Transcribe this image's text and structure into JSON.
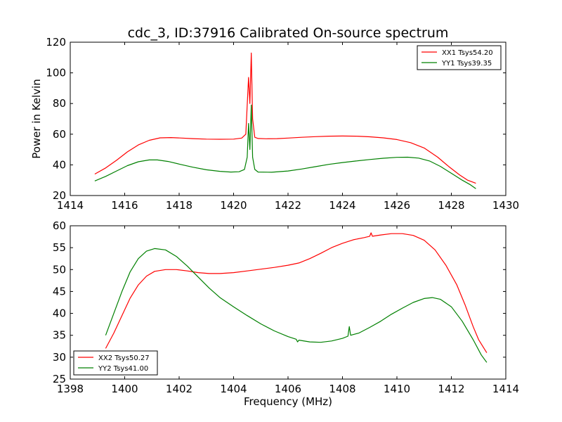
{
  "figure_title": "cdc_3, ID:37916 Calibrated On-source spectrum",
  "ylabel": "Power in Kelvin",
  "xlabel": "Frequency (MHz)",
  "colors": {
    "red": "#ff0000",
    "green": "#008000"
  },
  "chart_data": [
    {
      "type": "line",
      "xlim": [
        1414,
        1430
      ],
      "ylim": [
        20,
        120
      ],
      "xticks": [
        "1414",
        "1416",
        "1418",
        "1420",
        "1422",
        "1424",
        "1426",
        "1428",
        "1430"
      ],
      "yticks": [
        "20",
        "40",
        "60",
        "80",
        "100",
        "120"
      ],
      "legend_position": "top-right",
      "series": [
        {
          "name": "XX1 Tsys54.20",
          "color": "#ff0000",
          "points": [
            [
              1414.9,
              34
            ],
            [
              1415.3,
              38
            ],
            [
              1415.7,
              43
            ],
            [
              1416.1,
              48.5
            ],
            [
              1416.5,
              53
            ],
            [
              1416.9,
              56
            ],
            [
              1417.3,
              57.6
            ],
            [
              1417.7,
              57.8
            ],
            [
              1418.1,
              57.5
            ],
            [
              1418.5,
              57.1
            ],
            [
              1419.0,
              56.8
            ],
            [
              1419.5,
              56.7
            ],
            [
              1420.0,
              56.8
            ],
            [
              1420.3,
              57.5
            ],
            [
              1420.45,
              60
            ],
            [
              1420.55,
              97
            ],
            [
              1420.6,
              80
            ],
            [
              1420.65,
              113
            ],
            [
              1420.7,
              70
            ],
            [
              1420.78,
              58
            ],
            [
              1420.9,
              57.2
            ],
            [
              1421.2,
              57
            ],
            [
              1421.6,
              57.1
            ],
            [
              1422.0,
              57.5
            ],
            [
              1422.5,
              58
            ],
            [
              1423.0,
              58.4
            ],
            [
              1423.5,
              58.7
            ],
            [
              1424.0,
              58.8
            ],
            [
              1424.5,
              58.7
            ],
            [
              1425.0,
              58.3
            ],
            [
              1425.5,
              57.6
            ],
            [
              1426.0,
              56.5
            ],
            [
              1426.5,
              54.5
            ],
            [
              1427.0,
              51
            ],
            [
              1427.5,
              45
            ],
            [
              1427.9,
              39
            ],
            [
              1428.3,
              33.5
            ],
            [
              1428.6,
              30
            ],
            [
              1428.9,
              28
            ]
          ]
        },
        {
          "name": "YY1 Tsys39.35",
          "color": "#008000",
          "points": [
            [
              1414.9,
              29.5
            ],
            [
              1415.3,
              32.5
            ],
            [
              1415.7,
              36
            ],
            [
              1416.1,
              39.5
            ],
            [
              1416.5,
              42
            ],
            [
              1416.9,
              43.2
            ],
            [
              1417.2,
              43.2
            ],
            [
              1417.6,
              42.2
            ],
            [
              1418.0,
              40.5
            ],
            [
              1418.5,
              38.5
            ],
            [
              1419.0,
              36.8
            ],
            [
              1419.5,
              35.8
            ],
            [
              1419.9,
              35.3
            ],
            [
              1420.2,
              35.5
            ],
            [
              1420.4,
              37
            ],
            [
              1420.5,
              45
            ],
            [
              1420.55,
              67
            ],
            [
              1420.6,
              50
            ],
            [
              1420.65,
              79
            ],
            [
              1420.7,
              45
            ],
            [
              1420.78,
              37
            ],
            [
              1420.9,
              35.3
            ],
            [
              1421.4,
              35.2
            ],
            [
              1422.0,
              36
            ],
            [
              1422.5,
              37.3
            ],
            [
              1423.0,
              38.8
            ],
            [
              1423.5,
              40.3
            ],
            [
              1424.0,
              41.5
            ],
            [
              1424.5,
              42.5
            ],
            [
              1425.0,
              43.5
            ],
            [
              1425.5,
              44.3
            ],
            [
              1426.0,
              44.9
            ],
            [
              1426.4,
              45
            ],
            [
              1426.8,
              44.4
            ],
            [
              1427.2,
              42.5
            ],
            [
              1427.6,
              39
            ],
            [
              1428.0,
              34.5
            ],
            [
              1428.4,
              30
            ],
            [
              1428.7,
              27
            ],
            [
              1428.9,
              24.5
            ]
          ]
        }
      ]
    },
    {
      "type": "line",
      "xlim": [
        1398,
        1414
      ],
      "ylim": [
        25,
        60
      ],
      "xticks": [
        "1398",
        "1400",
        "1402",
        "1404",
        "1406",
        "1408",
        "1410",
        "1412",
        "1414"
      ],
      "yticks": [
        "25",
        "30",
        "35",
        "40",
        "45",
        "50",
        "55",
        "60"
      ],
      "legend_position": "bottom-left",
      "series": [
        {
          "name": "XX2 Tsys50.27",
          "color": "#ff0000",
          "points": [
            [
              1399.3,
              32
            ],
            [
              1399.6,
              35.5
            ],
            [
              1399.9,
              39.5
            ],
            [
              1400.2,
              43.5
            ],
            [
              1400.5,
              46.5
            ],
            [
              1400.8,
              48.5
            ],
            [
              1401.1,
              49.6
            ],
            [
              1401.5,
              50
            ],
            [
              1401.9,
              50
            ],
            [
              1402.3,
              49.7
            ],
            [
              1402.7,
              49.3
            ],
            [
              1403.1,
              49.1
            ],
            [
              1403.5,
              49.1
            ],
            [
              1404.0,
              49.3
            ],
            [
              1404.5,
              49.7
            ],
            [
              1405.0,
              50.1
            ],
            [
              1405.5,
              50.5
            ],
            [
              1406.0,
              51
            ],
            [
              1406.4,
              51.5
            ],
            [
              1406.8,
              52.5
            ],
            [
              1407.2,
              53.7
            ],
            [
              1407.6,
              55
            ],
            [
              1408.0,
              56
            ],
            [
              1408.4,
              56.8
            ],
            [
              1408.8,
              57.3
            ],
            [
              1409.0,
              57.6
            ],
            [
              1409.05,
              58.4
            ],
            [
              1409.1,
              57.6
            ],
            [
              1409.4,
              57.9
            ],
            [
              1409.8,
              58.2
            ],
            [
              1410.2,
              58.2
            ],
            [
              1410.6,
              57.8
            ],
            [
              1411.0,
              56.7
            ],
            [
              1411.4,
              54.5
            ],
            [
              1411.8,
              51
            ],
            [
              1412.2,
              46.5
            ],
            [
              1412.5,
              42
            ],
            [
              1412.8,
              37
            ],
            [
              1413.0,
              34
            ],
            [
              1413.3,
              31
            ]
          ]
        },
        {
          "name": "YY2 Tsys41.00",
          "color": "#008000",
          "points": [
            [
              1399.3,
              35
            ],
            [
              1399.6,
              40
            ],
            [
              1399.9,
              45
            ],
            [
              1400.2,
              49.5
            ],
            [
              1400.5,
              52.5
            ],
            [
              1400.8,
              54.2
            ],
            [
              1401.1,
              54.8
            ],
            [
              1401.5,
              54.5
            ],
            [
              1401.9,
              53
            ],
            [
              1402.3,
              50.8
            ],
            [
              1402.7,
              48.3
            ],
            [
              1403.1,
              45.8
            ],
            [
              1403.5,
              43.6
            ],
            [
              1404.0,
              41.5
            ],
            [
              1404.5,
              39.5
            ],
            [
              1405.0,
              37.6
            ],
            [
              1405.5,
              36
            ],
            [
              1406.0,
              34.7
            ],
            [
              1406.3,
              34.1
            ],
            [
              1406.35,
              33.5
            ],
            [
              1406.4,
              33.9
            ],
            [
              1406.8,
              33.5
            ],
            [
              1407.2,
              33.4
            ],
            [
              1407.6,
              33.7
            ],
            [
              1408.0,
              34.3
            ],
            [
              1408.2,
              34.8
            ],
            [
              1408.25,
              37
            ],
            [
              1408.3,
              35
            ],
            [
              1408.6,
              35.5
            ],
            [
              1409.0,
              36.8
            ],
            [
              1409.4,
              38.2
            ],
            [
              1409.8,
              39.8
            ],
            [
              1410.2,
              41.2
            ],
            [
              1410.6,
              42.5
            ],
            [
              1411.0,
              43.4
            ],
            [
              1411.3,
              43.6
            ],
            [
              1411.6,
              43.2
            ],
            [
              1412.0,
              41.5
            ],
            [
              1412.4,
              38.2
            ],
            [
              1412.8,
              34
            ],
            [
              1413.1,
              30.5
            ],
            [
              1413.3,
              28.8
            ]
          ]
        }
      ]
    }
  ]
}
